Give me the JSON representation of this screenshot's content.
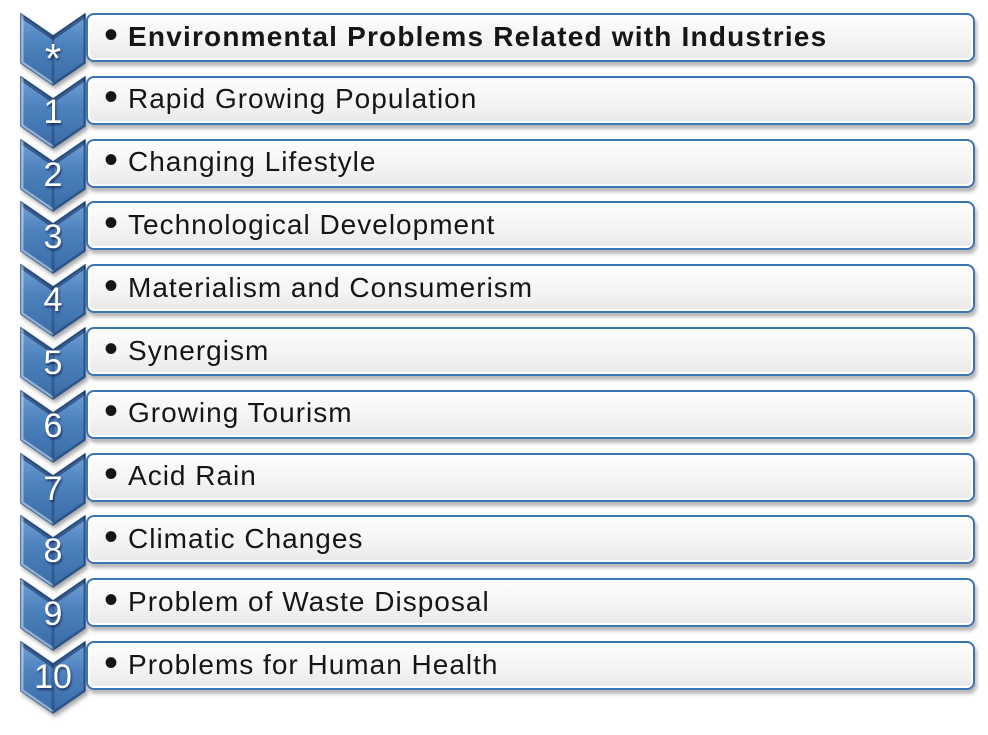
{
  "diagram": {
    "type": "vertical-chevron-list",
    "bullet_glyph": "•",
    "rows": [
      {
        "marker": "*",
        "text": "Environmental Problems Related with Industries",
        "emphasis": true
      },
      {
        "marker": "1",
        "text": "Rapid Growing Population",
        "emphasis": false
      },
      {
        "marker": "2",
        "text": "Changing Lifestyle",
        "emphasis": false
      },
      {
        "marker": "3",
        "text": "Technological Development",
        "emphasis": false
      },
      {
        "marker": "4",
        "text": "Materialism and Consumerism",
        "emphasis": false
      },
      {
        "marker": "5",
        "text": "Synergism",
        "emphasis": false
      },
      {
        "marker": "6",
        "text": "Growing Tourism",
        "emphasis": false
      },
      {
        "marker": "7",
        "text": "Acid Rain",
        "emphasis": false
      },
      {
        "marker": "8",
        "text": "Climatic Changes",
        "emphasis": false
      },
      {
        "marker": "9",
        "text": "Problem of Waste Disposal",
        "emphasis": false
      },
      {
        "marker": "10",
        "text": "Problems for Human Health",
        "emphasis": false
      }
    ]
  },
  "colors": {
    "chevron_fill_top": "#6f9fd6",
    "chevron_fill_mid": "#4b80bd",
    "chevron_fill_bottom": "#3a6ba6",
    "chevron_edge": "#2a5a94",
    "bar_border": "#3c74b4",
    "bar_bg_top": "#fdfdfd",
    "bar_bg_mid": "#f4f4f4",
    "bar_bg_bottom": "#e9e9e9",
    "text": "#161616",
    "marker_text": "#ffffff"
  }
}
